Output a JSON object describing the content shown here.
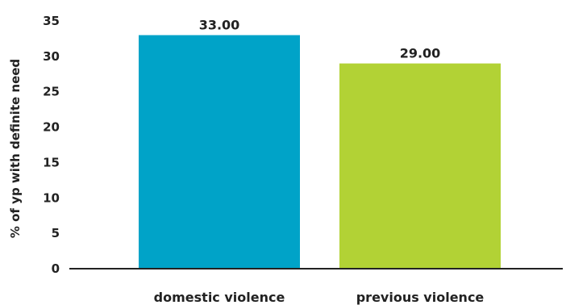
{
  "chart_data": {
    "type": "bar",
    "title": "",
    "xlabel": "",
    "ylabel": "% of yp with definite need",
    "categories": [
      "domestic violence",
      "previous violence"
    ],
    "values": [
      33.0,
      29.0
    ],
    "data_labels": [
      "33.00",
      "29.00"
    ],
    "colors": [
      "#00a3c8",
      "#b2d235"
    ],
    "ylim": [
      0,
      35
    ],
    "yticks": [
      0,
      5,
      10,
      15,
      20,
      25,
      30,
      35
    ],
    "grid": false,
    "legend": "none"
  }
}
